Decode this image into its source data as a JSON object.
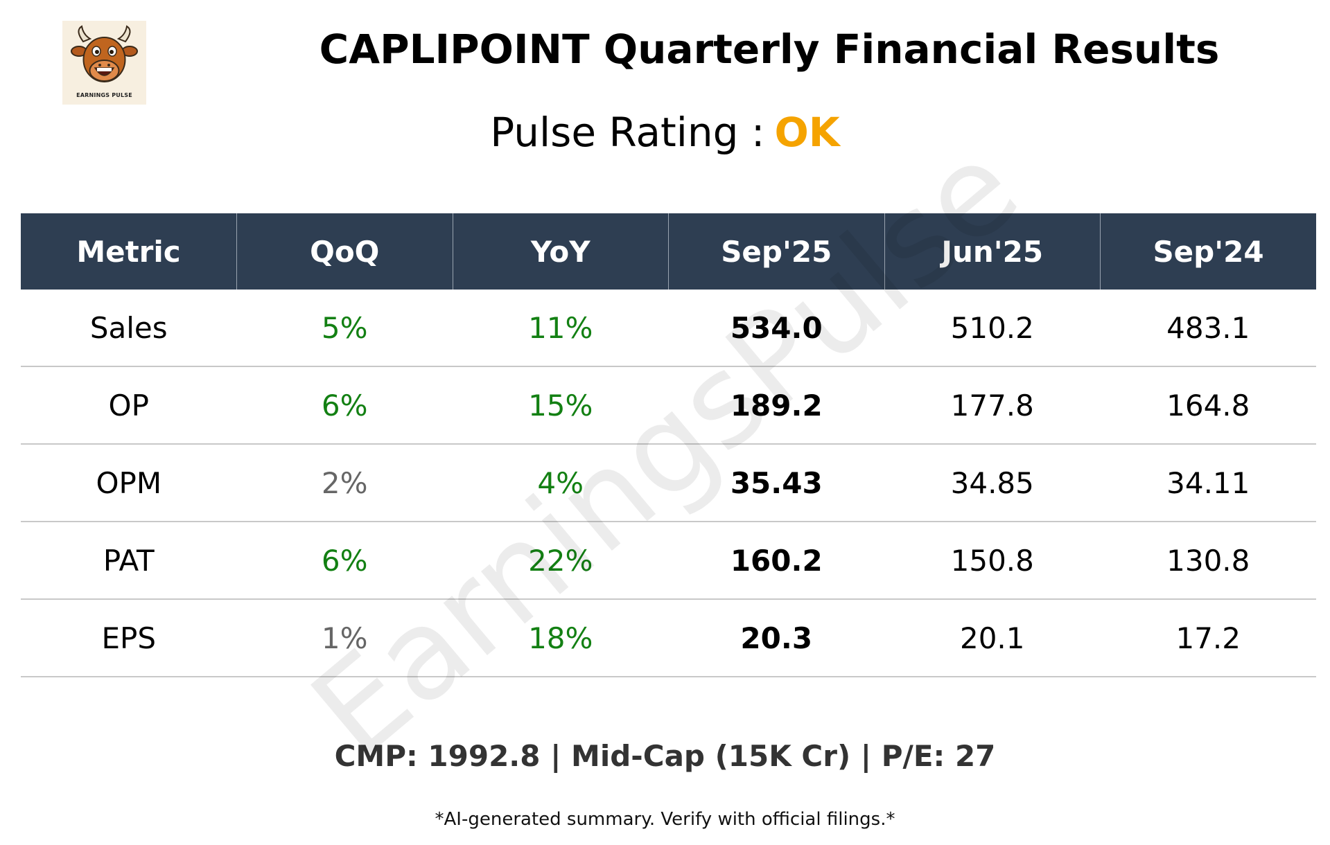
{
  "logo": {
    "icon": "bull-mascot-icon",
    "text": "EARNINGS PULSE"
  },
  "title": "CAPLIPOINT Quarterly Financial Results",
  "rating": {
    "label": "Pulse Rating :",
    "value": "OK",
    "value_color": "#f5a300"
  },
  "watermark": "EarningsPulse",
  "colors": {
    "header_bg": "#2e3e52",
    "positive": "#138013",
    "neutral": "#666666"
  },
  "table": {
    "headers": [
      "Metric",
      "QoQ",
      "YoY",
      "Sep'25",
      "Jun'25",
      "Sep'24"
    ],
    "rows": [
      {
        "metric": "Sales",
        "qoq": "5%",
        "qoq_status": "positive",
        "yoy": "11%",
        "yoy_status": "positive",
        "sep25": "534.0",
        "jun25": "510.2",
        "sep24": "483.1"
      },
      {
        "metric": "OP",
        "qoq": "6%",
        "qoq_status": "positive",
        "yoy": "15%",
        "yoy_status": "positive",
        "sep25": "189.2",
        "jun25": "177.8",
        "sep24": "164.8"
      },
      {
        "metric": "OPM",
        "qoq": "2%",
        "qoq_status": "neutral",
        "yoy": "4%",
        "yoy_status": "positive",
        "sep25": "35.43",
        "jun25": "34.85",
        "sep24": "34.11"
      },
      {
        "metric": "PAT",
        "qoq": "6%",
        "qoq_status": "positive",
        "yoy": "22%",
        "yoy_status": "positive",
        "sep25": "160.2",
        "jun25": "150.8",
        "sep24": "130.8"
      },
      {
        "metric": "EPS",
        "qoq": "1%",
        "qoq_status": "neutral",
        "yoy": "18%",
        "yoy_status": "positive",
        "sep25": "20.3",
        "jun25": "20.1",
        "sep24": "17.2"
      }
    ]
  },
  "footer": {
    "cmp_line": "CMP: 1992.8 | Mid-Cap (15K Cr) | P/E: 27",
    "disclaimer": "*AI-generated summary. Verify with official filings.*"
  }
}
